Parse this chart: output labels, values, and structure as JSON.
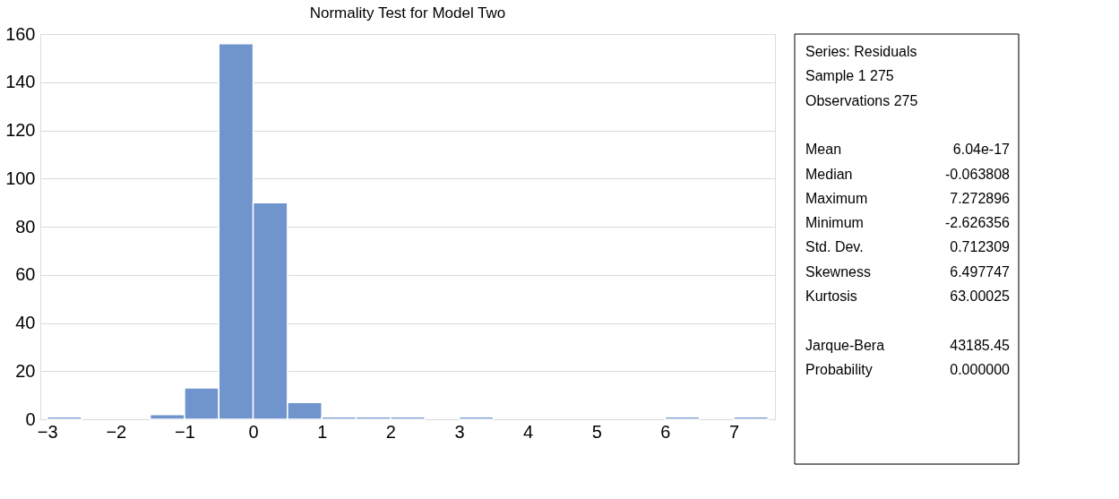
{
  "chart_data": [
    {
      "type": "histogram",
      "title": "Normality Test for Model Two",
      "bins": [
        -3,
        -2.5,
        -2,
        -1.5,
        -1,
        -0.5,
        0,
        0.5,
        1,
        1.5,
        2,
        2.5,
        3,
        3.5,
        4,
        4.5,
        5,
        5.5,
        6,
        6.5,
        7,
        7.5
      ],
      "values": [
        1,
        0,
        0,
        2,
        13,
        156,
        90,
        7,
        1,
        1,
        1,
        0,
        1,
        0,
        0,
        0,
        0,
        0,
        1,
        0,
        1
      ],
      "color": "#7094cc",
      "xlim": [
        -3.1,
        7.6
      ],
      "xticks": [
        -3,
        -2,
        -1,
        0,
        1,
        2,
        3,
        4,
        5,
        6,
        7
      ],
      "ylim": [
        0,
        160
      ],
      "yticks": [
        0,
        20,
        40,
        60,
        80,
        100,
        120,
        140,
        160
      ],
      "grid": "y"
    },
    {
      "type": "other",
      "annotations": [
        "Series: Residuals",
        "Sample 1 275",
        "Observations 275"
      ],
      "categories": [
        null,
        "Mean",
        "Median",
        "Maximum",
        "Minimum",
        "Std. Dev.",
        "Skewness",
        "Kurtosis",
        null,
        "Jarque-Bera",
        "Probability"
      ],
      "value_labels": [
        null,
        "6.04e-17",
        "-0.063808",
        "7.272896",
        "-2.626356",
        "0.712309",
        "6.497747",
        "63.00025",
        null,
        "43185.45",
        "0.000000"
      ]
    }
  ]
}
